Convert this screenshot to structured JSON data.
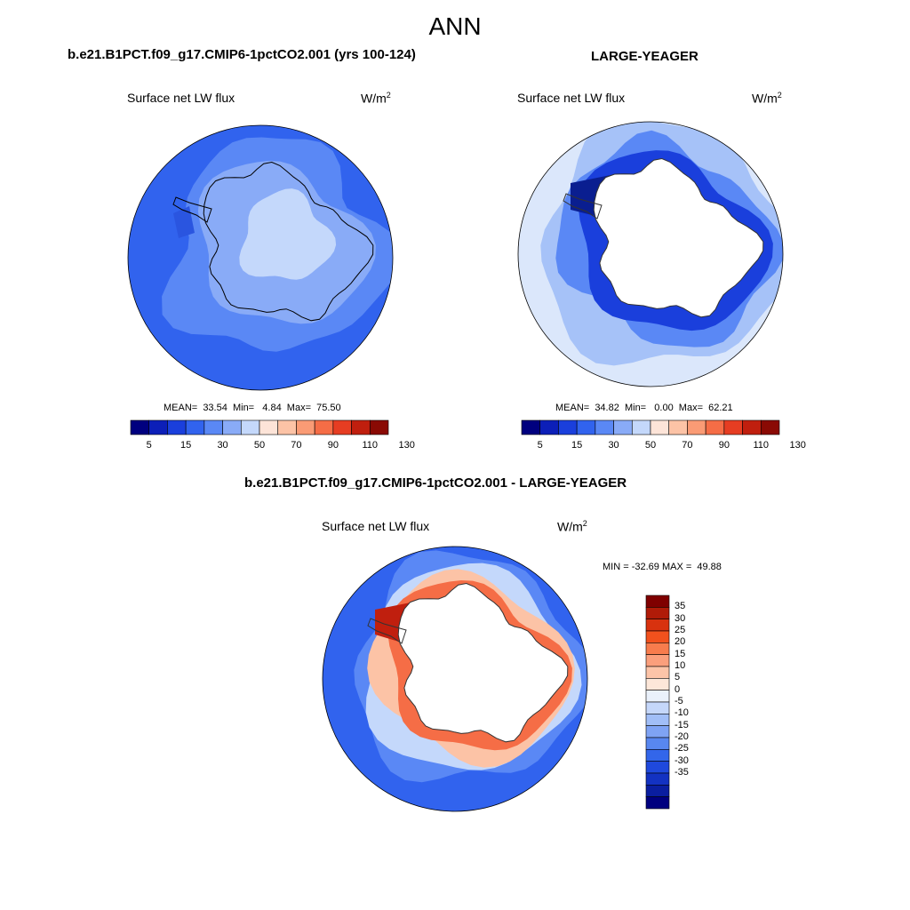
{
  "title": "ANN",
  "panels": [
    {
      "title": "b.e21.B1PCT.f09_g17.CMIP6-1pctCO2.001 (yrs 100-124)",
      "variable": "Surface net LW flux",
      "units": "W/m",
      "units_exp": "2",
      "stats": "MEAN=  33.54  Min=   4.84  Max=  75.50"
    },
    {
      "title": "LARGE-YEAGER",
      "variable": "Surface net LW flux",
      "units": "W/m",
      "units_exp": "2",
      "stats": "MEAN=  34.82  Min=   0.00  Max=  62.21"
    },
    {
      "title": "b.e21.B1PCT.f09_g17.CMIP6-1pctCO2.001 - LARGE-YEAGER",
      "variable": "Surface net LW flux",
      "units": "W/m",
      "units_exp": "2",
      "stats": "MIN = -32.69 MAX =  49.88"
    }
  ],
  "colorbar_main": {
    "colors": [
      "#00007f",
      "#0c1fb8",
      "#1a3fdc",
      "#3163ee",
      "#5a88f5",
      "#89abf7",
      "#c4d8fb",
      "#fde4d8",
      "#fcc3a6",
      "#fa9b75",
      "#f56d46",
      "#e63d22",
      "#c01f0e",
      "#8a0a04"
    ],
    "tick_labels": [
      "5",
      "15",
      "30",
      "50",
      "70",
      "90",
      "110",
      "130"
    ]
  },
  "colorbar_diff": {
    "colors": [
      "#7f0000",
      "#b01b08",
      "#d8320f",
      "#f2511d",
      "#f87c4d",
      "#fb9f7c",
      "#fdc4a8",
      "#fde7d9",
      "#eaf1fb",
      "#c5d7fa",
      "#a1bef7",
      "#7fa3f4",
      "#5887f0",
      "#3366ea",
      "#1f49dd",
      "#1332c2",
      "#0a1ea0",
      "#00007f"
    ],
    "tick_labels": [
      "35",
      "30",
      "25",
      "20",
      "15",
      "10",
      "5",
      "0",
      "-5",
      "-10",
      "-15",
      "-20",
      "-25",
      "-30",
      "-35"
    ]
  },
  "map_colors": {
    "ocean_30": "#3163ee",
    "ocean_50": "#5a88f5",
    "ice_70": "#89abf7",
    "ice_90": "#c4d8fb",
    "land_none": "#ffffff",
    "coast": "#000000"
  }
}
